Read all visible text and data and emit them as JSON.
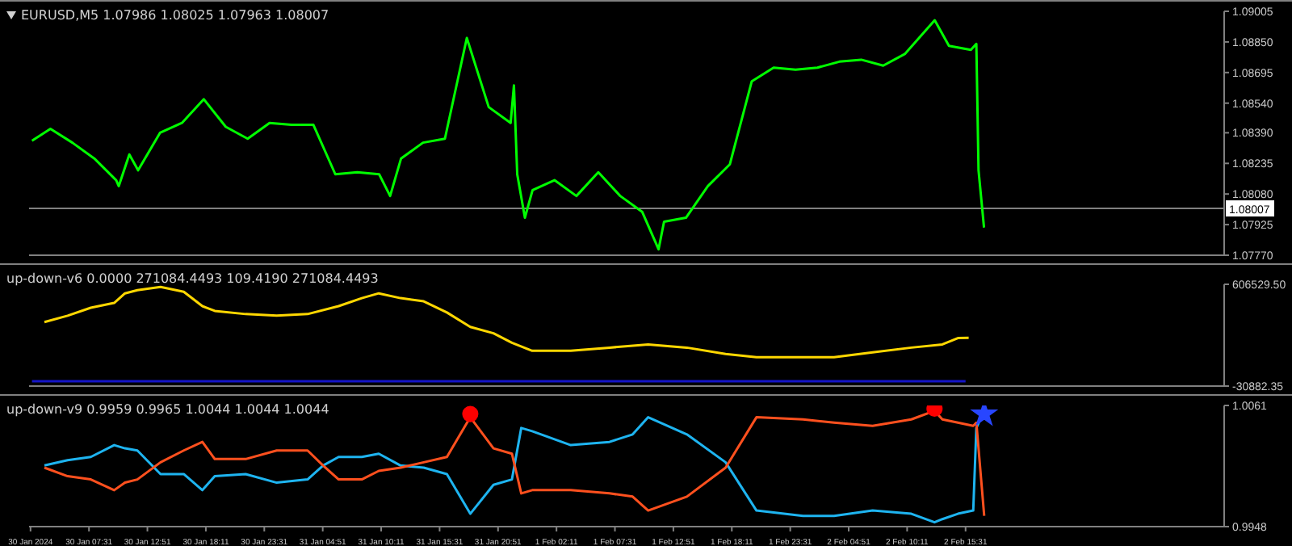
{
  "chart_data": [
    {
      "type": "line",
      "title": "EURUSD,M5  1.07986 1.08025 1.07963 1.08007",
      "tick_labels": "y",
      "xlim": [
        "2024-01-30T02:03",
        "2024-02-03T15:07"
      ],
      "ylim": [
        1.0777,
        1.09005
      ],
      "yticks": [
        {
          "value": 1.0777,
          "label": "1.07770"
        },
        {
          "value": 1.07925,
          "label": "1.07925"
        },
        {
          "value": 1.0808,
          "label": "1.08080"
        },
        {
          "value": 1.08235,
          "label": "1.08235"
        },
        {
          "value": 1.0839,
          "label": "1.08390"
        },
        {
          "value": 1.0854,
          "label": "1.08540"
        },
        {
          "value": 1.08695,
          "label": "1.08695"
        },
        {
          "value": 1.0885,
          "label": "1.08850"
        },
        {
          "value": 1.09005,
          "label": "1.09005"
        }
      ],
      "ref_lines": [
        {
          "axis": "y",
          "value": 1.08007,
          "label": "1.08007",
          "color": "#808080"
        }
      ],
      "series": [
        {
          "color": "#00ff00",
          "x": [
            "2024-01-30T02:19",
            "2024-01-30T04:00",
            "2024-01-30T06:00",
            "2024-01-30T08:00",
            "2024-01-30T10:00",
            "2024-01-30T10:14",
            "2024-01-30T11:12",
            "2024-01-30T12:00",
            "2024-01-30T14:00",
            "2024-01-30T16:00",
            "2024-01-30T18:00",
            "2024-01-30T20:00",
            "2024-01-30T22:00",
            "2024-01-31T00:00",
            "2024-01-31T02:00",
            "2024-01-31T04:00",
            "2024-01-31T06:00",
            "2024-01-31T08:00",
            "2024-01-31T10:00",
            "2024-01-31T11:00",
            "2024-01-31T12:00",
            "2024-01-31T14:00",
            "2024-01-31T16:00",
            "2024-01-31T18:00",
            "2024-01-31T20:00",
            "2024-01-31T22:00",
            "2024-01-31T22:18",
            "2024-01-31T22:36",
            "2024-01-31T23:18",
            "2024-02-01T00:00",
            "2024-02-01T02:00",
            "2024-02-01T04:00",
            "2024-02-01T06:00",
            "2024-02-01T08:00",
            "2024-02-01T10:00",
            "2024-02-01T11:30",
            "2024-02-01T12:00",
            "2024-02-01T14:00",
            "2024-02-01T16:00",
            "2024-02-01T18:00",
            "2024-02-01T20:00",
            "2024-02-01T22:00",
            "2024-02-02T00:00",
            "2024-02-02T02:00",
            "2024-02-02T04:00",
            "2024-02-02T06:00",
            "2024-02-02T08:00",
            "2024-02-02T10:00",
            "2024-02-02T12:42",
            "2024-02-02T14:00",
            "2024-02-02T16:00",
            "2024-02-02T16:30",
            "2024-02-02T16:42",
            "2024-02-02T17:12"
          ],
          "values": [
            1.0835,
            1.0841,
            1.0834,
            1.0826,
            1.0815,
            1.0812,
            1.0828,
            1.082,
            1.0839,
            1.0844,
            1.0856,
            1.0842,
            1.0836,
            1.0844,
            1.0843,
            1.0843,
            1.0818,
            1.0819,
            1.0818,
            1.0807,
            1.0826,
            1.0834,
            1.0836,
            1.0887,
            1.0852,
            1.0844,
            1.0863,
            1.0818,
            1.0796,
            1.081,
            1.0815,
            1.0807,
            1.0819,
            1.0807,
            1.0799,
            1.078,
            1.0794,
            1.0796,
            1.0812,
            1.0823,
            1.0865,
            1.0872,
            1.0871,
            1.0872,
            1.0875,
            1.0876,
            1.0873,
            1.0879,
            1.0896,
            1.0883,
            1.0881,
            1.0884,
            1.082,
            1.0791
          ]
        }
      ]
    },
    {
      "type": "line",
      "title": "up-down-v6 0.0000 271084.4493 109.4190 271084.4493",
      "tick_labels": "y",
      "xlim": [
        "2024-01-30T02:03",
        "2024-02-03T15:07"
      ],
      "ylim": [
        -30882.35,
        606529.5
      ],
      "yticks": [
        {
          "value": -30882.35,
          "label": "-30882.35"
        },
        {
          "value": 606529.5,
          "label": "606529.50"
        }
      ],
      "x": [
        "2024-01-30T03:27",
        "2024-01-30T05:34",
        "2024-01-30T07:41",
        "2024-01-30T09:49",
        "2024-01-30T10:48",
        "2024-01-30T11:56",
        "2024-01-30T14:03",
        "2024-01-30T16:10",
        "2024-01-30T17:52",
        "2024-01-30T19:00",
        "2024-01-30T21:49",
        "2024-01-31T00:39",
        "2024-01-31T03:28",
        "2024-01-31T06:18",
        "2024-01-31T08:25",
        "2024-01-31T09:58",
        "2024-01-31T11:57",
        "2024-01-31T14:04",
        "2024-01-31T16:11",
        "2024-01-31T18:19",
        "2024-01-31T20:26",
        "2024-01-31T22:07",
        "2024-01-31T23:58",
        "2024-02-01T03:29",
        "2024-02-01T07:01",
        "2024-02-01T10:33",
        "2024-02-01T14:05",
        "2024-02-01T17:37",
        "2024-02-01T20:26",
        "2024-02-02T00:41",
        "2024-02-02T03:31",
        "2024-02-02T07:02",
        "2024-02-02T10:34",
        "2024-02-02T13:24",
        "2024-02-02T14:49",
        "2024-02-02T15:48"
      ],
      "series": [
        {
          "color": "#ffd700",
          "values": [
            370000,
            410000,
            460000,
            490000,
            550000,
            570000,
            590000,
            560000,
            470000,
            440000,
            420000,
            410000,
            420000,
            470000,
            520000,
            550000,
            520000,
            500000,
            430000,
            340000,
            300000,
            240000,
            190000,
            190000,
            210000,
            230000,
            210000,
            170000,
            150000,
            150000,
            150000,
            180000,
            210000,
            230000,
            270000,
            271084.4493
          ]
        },
        {
          "color": "#1414c8",
          "x": [
            "2024-01-30T02:19",
            "2024-02-02T15:31"
          ],
          "values": [
            0,
            0
          ]
        }
      ]
    },
    {
      "type": "line",
      "title": "up-down-v9 0.9959 0.9965 1.0044 1.0044 1.0044",
      "xlim": [
        "2024-01-30T02:03",
        "2024-02-03T15:07"
      ],
      "ylim": [
        0.9948,
        1.0061
      ],
      "yticks": [
        0.9948,
        1.0061
      ],
      "xticks": [
        {
          "value": "2024-01-30T02:11",
          "label": "30 Jan 2024"
        },
        {
          "value": "2024-01-30T07:31",
          "label": "30 Jan 07:31"
        },
        {
          "value": "2024-01-30T12:51",
          "label": "30 Jan 12:51"
        },
        {
          "value": "2024-01-30T18:11",
          "label": "30 Jan 18:11"
        },
        {
          "value": "2024-01-30T23:31",
          "label": "30 Jan 23:31"
        },
        {
          "value": "2024-01-31T04:51",
          "label": "31 Jan 04:51"
        },
        {
          "value": "2024-01-31T10:11",
          "label": "31 Jan 10:11"
        },
        {
          "value": "2024-01-31T15:31",
          "label": "31 Jan 15:31"
        },
        {
          "value": "2024-01-31T20:51",
          "label": "31 Jan 20:51"
        },
        {
          "value": "2024-02-01T02:11",
          "label": "1 Feb 02:11"
        },
        {
          "value": "2024-02-01T07:31",
          "label": "1 Feb 07:31"
        },
        {
          "value": "2024-02-01T12:51",
          "label": "1 Feb 12:51"
        },
        {
          "value": "2024-02-01T18:11",
          "label": "1 Feb 18:11"
        },
        {
          "value": "2024-02-01T23:31",
          "label": "1 Feb 23:31"
        },
        {
          "value": "2024-02-02T04:51",
          "label": "2 Feb 04:51"
        },
        {
          "value": "2024-02-02T10:11",
          "label": "2 Feb 10:11"
        },
        {
          "value": "2024-02-02T15:31",
          "label": "2 Feb 15:31"
        }
      ],
      "x": [
        "2024-01-30T03:27",
        "2024-01-30T05:34",
        "2024-01-30T07:41",
        "2024-01-30T09:49",
        "2024-01-30T10:48",
        "2024-01-30T11:56",
        "2024-01-30T14:03",
        "2024-01-30T16:10",
        "2024-01-30T17:52",
        "2024-01-30T19:00",
        "2024-01-30T21:49",
        "2024-01-31T00:39",
        "2024-01-31T03:28",
        "2024-01-31T04:53",
        "2024-01-31T06:18",
        "2024-01-31T08:25",
        "2024-01-31T09:58",
        "2024-01-31T11:57",
        "2024-01-31T14:04",
        "2024-01-31T16:11",
        "2024-01-31T18:19",
        "2024-01-31T20:26",
        "2024-01-31T22:07",
        "2024-01-31T22:58",
        "2024-01-31T23:58",
        "2024-02-01T03:29",
        "2024-02-01T07:01",
        "2024-02-01T09:08",
        "2024-02-01T10:33",
        "2024-02-01T14:05",
        "2024-02-01T17:37",
        "2024-02-01T20:26",
        "2024-02-02T00:41",
        "2024-02-02T03:31",
        "2024-02-02T07:02",
        "2024-02-02T10:34",
        "2024-02-02T12:41",
        "2024-02-02T13:24",
        "2024-02-02T14:49",
        "2024-02-02T16:13",
        "2024-02-02T16:30",
        "2024-02-02T17:13"
      ],
      "series": [
        {
          "color": "#1eb4f0",
          "values": [
            1.0005,
            1.001,
            1.0013,
            1.0024,
            1.0021,
            1.0019,
            0.9997,
            0.9997,
            0.9982,
            0.9995,
            0.9997,
            0.9989,
            0.9992,
            1.0005,
            1.0013,
            1.0013,
            1.0016,
            1.0005,
            1.0003,
            0.9997,
            0.996,
            0.9987,
            0.9992,
            1.004,
            1.0037,
            1.0024,
            1.0027,
            1.0034,
            1.005,
            1.0034,
            1.0008,
            0.9963,
            0.9958,
            0.9958,
            0.9963,
            0.996,
            0.9952,
            0.9955,
            0.996,
            0.9963,
            1.004,
            1.0056
          ]
        },
        {
          "color": "#ff501e",
          "values": [
            1.0003,
            0.9995,
            0.9992,
            0.9982,
            0.9989,
            0.9992,
            1.0008,
            1.0019,
            1.0027,
            1.0011,
            1.0011,
            1.0019,
            1.0019,
            1.0005,
            0.9992,
            0.9992,
            1.0,
            1.0003,
            1.0008,
            1.0013,
            1.005,
            1.0021,
            1.0016,
            0.9979,
            0.9982,
            0.9982,
            0.9979,
            0.9976,
            0.9963,
            0.9976,
            1.0003,
            1.005,
            1.0048,
            1.0045,
            1.0042,
            1.0048,
            1.0056,
            1.0048,
            1.0045,
            1.0042,
            1.0045,
            0.9958
          ]
        },
        {
          "type": "scatter",
          "marker": "circle",
          "color": "#ff0000",
          "x": [
            "2024-01-31T18:19",
            "2024-02-02T12:41"
          ],
          "values": [
            1.0053,
            1.0058
          ]
        },
        {
          "type": "scatter",
          "marker": "star",
          "color": "#2846ff",
          "x": [
            "2024-02-02T17:13"
          ],
          "values": [
            1.0053
          ]
        }
      ]
    }
  ]
}
